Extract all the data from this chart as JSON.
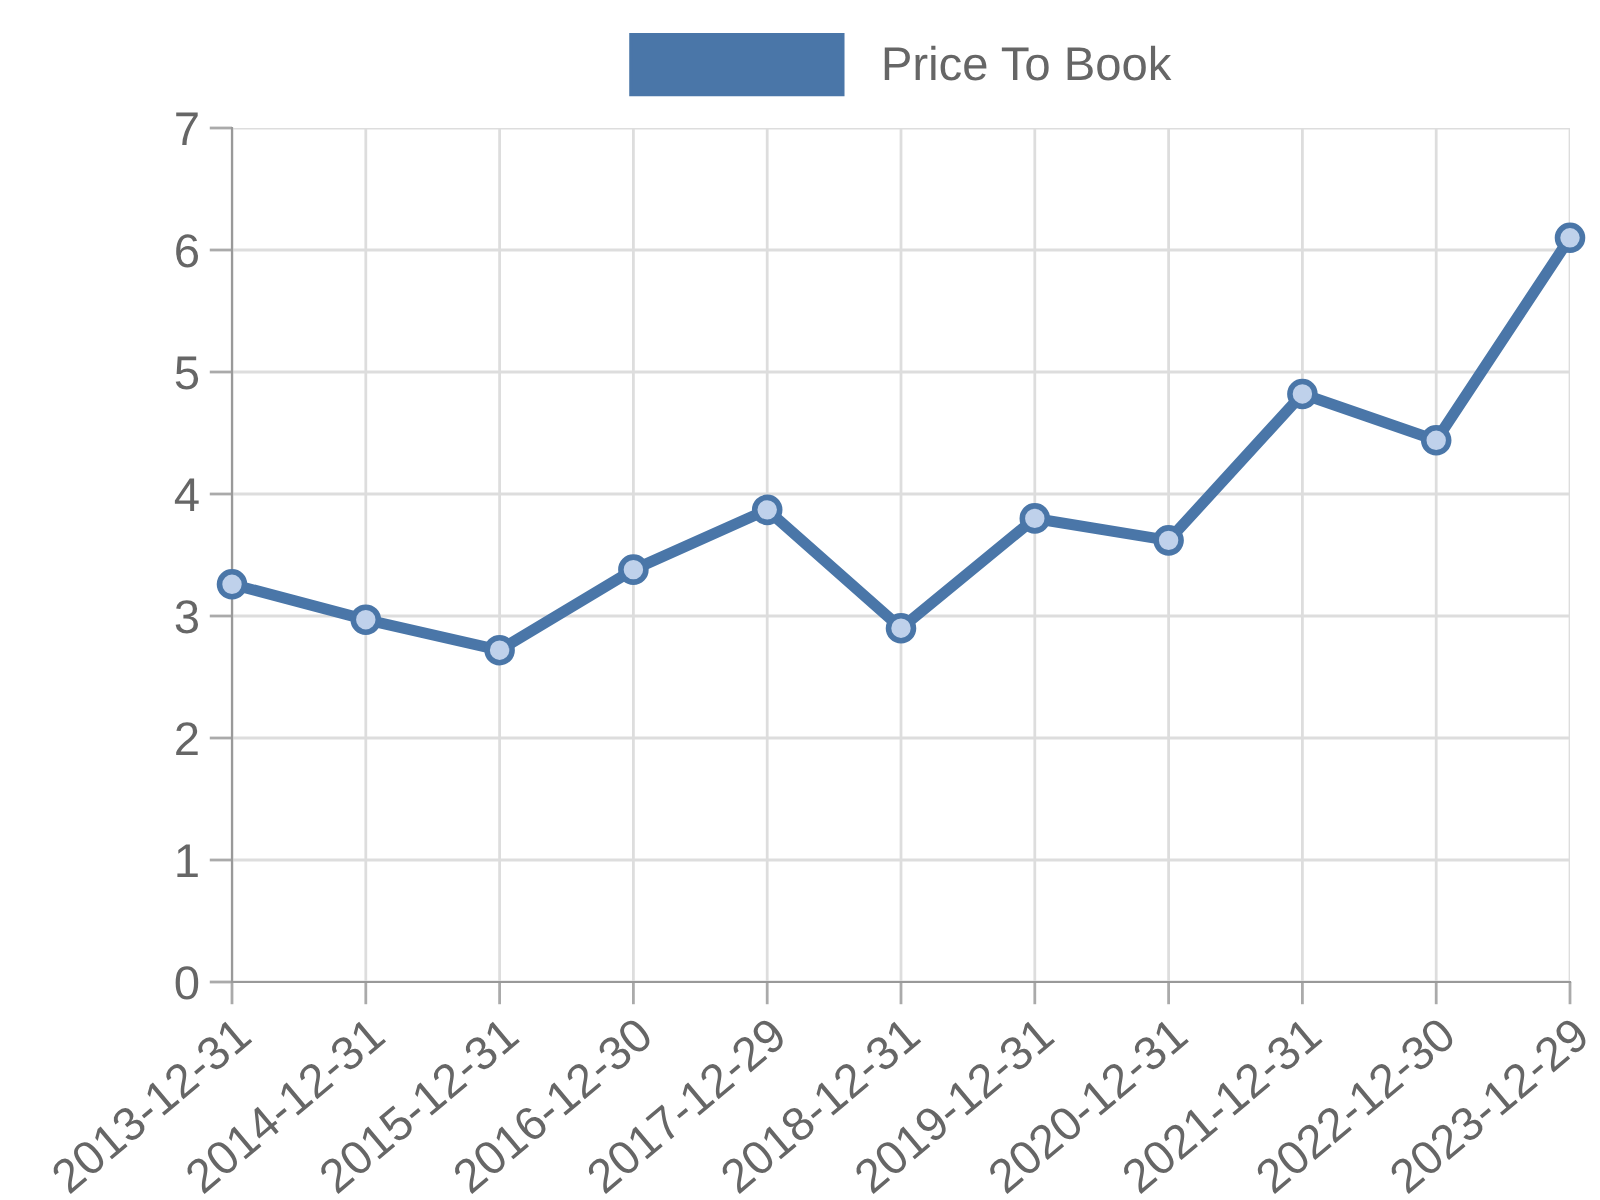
{
  "chart_data": {
    "type": "line",
    "categories": [
      "2013-12-31",
      "2014-12-31",
      "2015-12-31",
      "2016-12-30",
      "2017-12-29",
      "2018-12-31",
      "2019-12-31",
      "2020-12-31",
      "2021-12-31",
      "2022-12-30",
      "2023-12-29"
    ],
    "series": [
      {
        "name": "Price To Book",
        "color": "#4a76a8",
        "values": [
          3.26,
          2.97,
          2.72,
          3.38,
          3.87,
          2.9,
          3.8,
          3.62,
          4.82,
          4.44,
          6.1
        ]
      }
    ],
    "ylim": [
      0,
      7
    ],
    "yticks": [
      0,
      1,
      2,
      3,
      4,
      5,
      6,
      7
    ],
    "grid": true,
    "legend": "top",
    "marker": "circle",
    "line_style": "solid"
  }
}
